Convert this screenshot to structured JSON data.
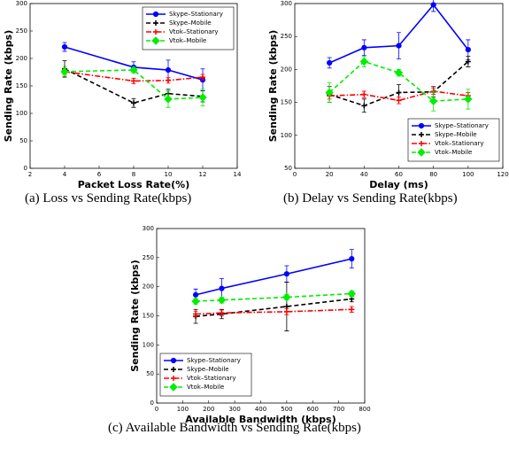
{
  "chart_data": [
    {
      "type": "line",
      "caption": "(a) Loss vs Sending Rate(kbps)",
      "xlabel": "Packet Loss Rate(%)",
      "ylabel": "Sending Rate (kbps)",
      "x": [
        4,
        8,
        10,
        12
      ],
      "xlim": [
        2,
        14
      ],
      "xticks": [
        2,
        4,
        6,
        8,
        10,
        12,
        14
      ],
      "ylim": [
        0,
        300
      ],
      "yticks": [
        0,
        50,
        100,
        150,
        200,
        250,
        300
      ],
      "legend": "upper right",
      "series": [
        {
          "name": "Skype–Stationary",
          "color": "#0000ff",
          "linestyle": "solid",
          "marker": "circle",
          "values": [
            221,
            184,
            179,
            161
          ],
          "errors": [
            8,
            10,
            18,
            20
          ]
        },
        {
          "name": "Skype–Mobile",
          "color": "#000000",
          "linestyle": "dashed",
          "marker": "plus",
          "values": [
            181,
            119,
            136,
            131
          ],
          "errors": [
            15,
            8,
            8,
            10
          ]
        },
        {
          "name": "Vtok–Stationary",
          "color": "#ff0000",
          "linestyle": "dashdot",
          "marker": "plus",
          "values": [
            176,
            159,
            160,
            166
          ],
          "errors": [
            5,
            5,
            5,
            5
          ]
        },
        {
          "name": "Vtok–Mobile",
          "color": "#00ee00",
          "linestyle": "dashed",
          "marker": "diamond",
          "values": [
            176,
            179,
            126,
            129
          ],
          "errors": [
            8,
            5,
            15,
            15
          ]
        }
      ]
    },
    {
      "type": "line",
      "caption": "(b) Delay vs Sending Rate(kbps)",
      "xlabel": "Delay (ms)",
      "ylabel": "Sending Rate (kbps)",
      "x": [
        20,
        40,
        60,
        80,
        100
      ],
      "xlim": [
        0,
        120
      ],
      "xticks": [
        0,
        20,
        40,
        60,
        80,
        100,
        120
      ],
      "ylim": [
        50,
        300
      ],
      "yticks": [
        50,
        100,
        150,
        200,
        250,
        300
      ],
      "legend": "lower right",
      "series": [
        {
          "name": "Skype–Stationary",
          "color": "#0000ff",
          "linestyle": "solid",
          "marker": "circle",
          "values": [
            210,
            233,
            236,
            298,
            230
          ],
          "errors": [
            8,
            12,
            20,
            10,
            15
          ]
        },
        {
          "name": "Skype–Mobile",
          "color": "#000000",
          "linestyle": "dashed",
          "marker": "plus",
          "values": [
            162,
            145,
            165,
            166,
            212
          ],
          "errors": [
            12,
            10,
            12,
            8,
            8
          ]
        },
        {
          "name": "Vtok–Stationary",
          "color": "#ff0000",
          "linestyle": "dashdot",
          "marker": "plus",
          "values": [
            160,
            162,
            153,
            167,
            160
          ],
          "errors": [
            5,
            5,
            5,
            5,
            5
          ]
        },
        {
          "name": "Vtok–Mobile",
          "color": "#00ee00",
          "linestyle": "dashed",
          "marker": "diamond",
          "values": [
            165,
            212,
            195,
            152,
            155
          ],
          "errors": [
            15,
            8,
            5,
            15,
            15
          ]
        }
      ]
    },
    {
      "type": "line",
      "caption": "(c) Available Bandwidth vs Sending Rate(kbps)",
      "xlabel": "Available Bandwidth (kbps)",
      "ylabel": "Sending Rate (kbps)",
      "x": [
        150,
        250,
        500,
        750
      ],
      "xlim": [
        0,
        800
      ],
      "xticks": [
        0,
        100,
        200,
        300,
        400,
        500,
        600,
        700,
        800
      ],
      "ylim": [
        0,
        300
      ],
      "yticks": [
        0,
        50,
        100,
        150,
        200,
        250,
        300
      ],
      "legend": "lower left",
      "series": [
        {
          "name": "Skype–Stationary",
          "color": "#0000ff",
          "linestyle": "solid",
          "marker": "circle",
          "values": [
            186,
            197,
            222,
            248
          ],
          "errors": [
            10,
            17,
            14,
            16
          ]
        },
        {
          "name": "Skype–Mobile",
          "color": "#000000",
          "linestyle": "dashed",
          "marker": "plus",
          "values": [
            149,
            153,
            166,
            179
          ],
          "errors": [
            12,
            8,
            42,
            5
          ]
        },
        {
          "name": "Vtok–Stationary",
          "color": "#ff0000",
          "linestyle": "dashdot",
          "marker": "plus",
          "values": [
            153,
            155,
            157,
            161
          ],
          "errors": [
            5,
            5,
            5,
            5
          ]
        },
        {
          "name": "Vtok–Mobile",
          "color": "#00ee00",
          "linestyle": "dashed",
          "marker": "diamond",
          "values": [
            175,
            177,
            182,
            188
          ],
          "errors": [
            5,
            5,
            5,
            5
          ]
        }
      ]
    }
  ]
}
